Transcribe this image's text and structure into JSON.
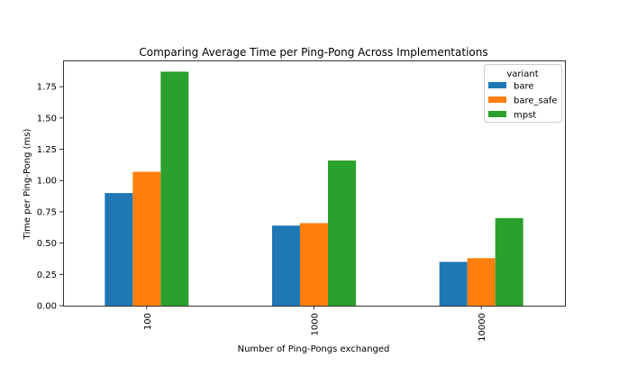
{
  "chart_data": {
    "type": "bar",
    "title": "Comparing Average Time per Ping-Pong Across Implementations",
    "xlabel": "Number of Ping-Pongs exchanged",
    "ylabel": "Time per Ping-Pong (ms)",
    "categories": [
      "100",
      "1000",
      "10000"
    ],
    "ylim": [
      0,
      1.96
    ],
    "yticks": [
      "0.00",
      "0.25",
      "0.50",
      "0.75",
      "1.00",
      "1.25",
      "1.50",
      "1.75"
    ],
    "grid": false,
    "legend": {
      "title": "variant",
      "placement": "top-right"
    },
    "series": [
      {
        "name": "bare",
        "color": "#1f77b4",
        "values": [
          0.9,
          0.64,
          0.35
        ]
      },
      {
        "name": "bare_safe",
        "color": "#ff7f0e",
        "values": [
          1.07,
          0.66,
          0.38
        ]
      },
      {
        "name": "mpst",
        "color": "#2ca02c",
        "values": [
          1.87,
          1.16,
          0.7
        ]
      }
    ]
  }
}
